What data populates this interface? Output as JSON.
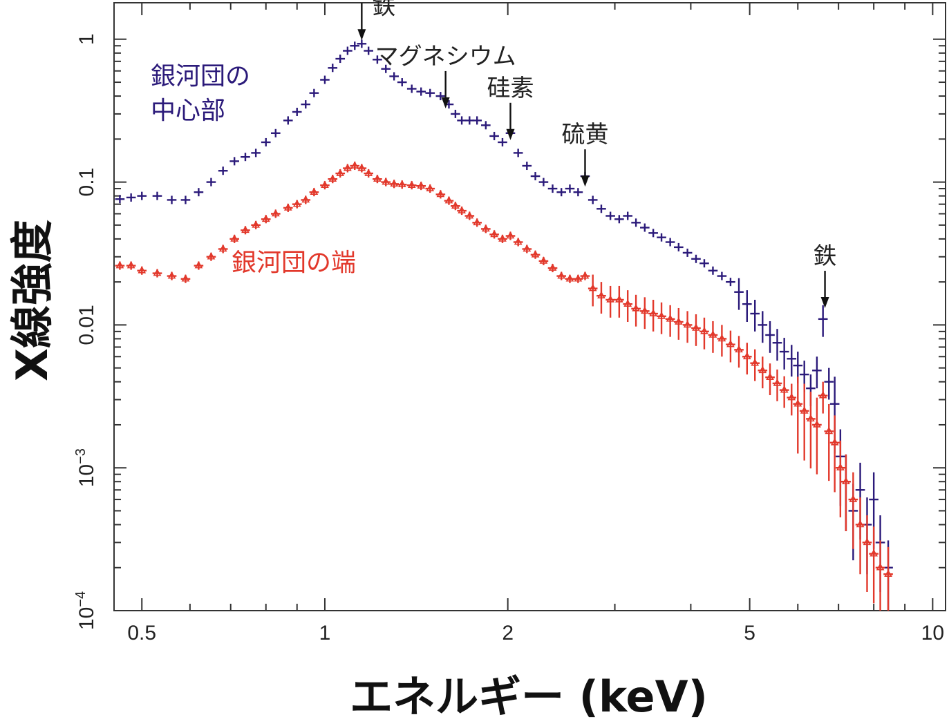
{
  "chart_data": {
    "type": "scatter",
    "x_scale": "log",
    "y_scale": "log",
    "xlabel": "エネルギー (keV)",
    "ylabel": "X線強度",
    "xlim": [
      0.45,
      10.5
    ],
    "ylim": [
      0.0001,
      1.8
    ],
    "x_ticks": [
      {
        "value": 0.5,
        "label": "0.5"
      },
      {
        "value": 1,
        "label": "1"
      },
      {
        "value": 2,
        "label": "2"
      },
      {
        "value": 5,
        "label": "5"
      },
      {
        "value": 10,
        "label": "10"
      }
    ],
    "y_ticks": [
      {
        "value": 1,
        "label": "1"
      },
      {
        "value": 0.1,
        "label": "0.1"
      },
      {
        "value": 0.01,
        "label": "0.01"
      },
      {
        "value": 0.001,
        "label": "10",
        "exp": "−3"
      },
      {
        "value": 0.0001,
        "label": "10",
        "exp": "−4"
      }
    ],
    "series": [
      {
        "name": "銀河団の中心部",
        "color": "#2b1a7a",
        "marker": "cross",
        "points": [
          [
            0.46,
            0.076
          ],
          [
            0.48,
            0.078
          ],
          [
            0.5,
            0.08
          ],
          [
            0.53,
            0.08
          ],
          [
            0.56,
            0.075
          ],
          [
            0.59,
            0.075
          ],
          [
            0.62,
            0.085
          ],
          [
            0.65,
            0.1
          ],
          [
            0.68,
            0.12
          ],
          [
            0.71,
            0.14
          ],
          [
            0.74,
            0.15
          ],
          [
            0.77,
            0.16
          ],
          [
            0.8,
            0.19
          ],
          [
            0.83,
            0.22
          ],
          [
            0.87,
            0.27
          ],
          [
            0.9,
            0.31
          ],
          [
            0.93,
            0.35
          ],
          [
            0.96,
            0.42
          ],
          [
            1.0,
            0.52
          ],
          [
            1.03,
            0.63
          ],
          [
            1.06,
            0.73
          ],
          [
            1.09,
            0.83
          ],
          [
            1.12,
            0.9
          ],
          [
            1.15,
            0.93
          ],
          [
            1.18,
            0.83
          ],
          [
            1.22,
            0.72
          ],
          [
            1.26,
            0.62
          ],
          [
            1.3,
            0.55
          ],
          [
            1.34,
            0.5
          ],
          [
            1.39,
            0.45
          ],
          [
            1.44,
            0.43
          ],
          [
            1.49,
            0.42
          ],
          [
            1.55,
            0.4
          ],
          [
            1.6,
            0.35
          ],
          [
            1.64,
            0.3
          ],
          [
            1.68,
            0.27
          ],
          [
            1.73,
            0.27
          ],
          [
            1.78,
            0.27
          ],
          [
            1.84,
            0.25
          ],
          [
            1.9,
            0.21
          ],
          [
            1.96,
            0.19
          ],
          [
            2.02,
            0.22
          ],
          [
            2.08,
            0.16
          ],
          [
            2.15,
            0.13
          ],
          [
            2.22,
            0.11
          ],
          [
            2.29,
            0.1
          ],
          [
            2.37,
            0.09
          ],
          [
            2.45,
            0.085
          ],
          [
            2.53,
            0.09
          ],
          [
            2.61,
            0.085
          ],
          [
            2.68,
            0.11
          ],
          [
            2.76,
            0.075
          ],
          [
            2.85,
            0.065
          ],
          [
            2.95,
            0.058
          ],
          [
            3.05,
            0.055
          ],
          [
            3.15,
            0.058
          ],
          [
            3.25,
            0.052
          ],
          [
            3.36,
            0.048
          ],
          [
            3.47,
            0.044
          ],
          [
            3.58,
            0.041
          ],
          [
            3.7,
            0.038
          ],
          [
            3.82,
            0.035
          ],
          [
            3.95,
            0.032
          ],
          [
            4.08,
            0.029
          ],
          [
            4.21,
            0.027
          ],
          [
            4.35,
            0.024
          ],
          [
            4.5,
            0.022
          ],
          [
            4.65,
            0.02
          ],
          [
            4.8,
            0.017
          ],
          [
            4.95,
            0.014
          ],
          [
            5.1,
            0.012
          ],
          [
            5.25,
            0.01
          ],
          [
            5.4,
            0.0085
          ],
          [
            5.55,
            0.0075
          ],
          [
            5.7,
            0.0065
          ],
          [
            5.86,
            0.0058
          ],
          [
            6.0,
            0.0052
          ],
          [
            6.15,
            0.0045
          ],
          [
            6.3,
            0.0036
          ],
          [
            6.45,
            0.0048
          ],
          [
            6.6,
            0.011
          ],
          [
            6.75,
            0.004
          ],
          [
            6.9,
            0.0028
          ],
          [
            7.05,
            0.0012
          ],
          [
            7.2,
            0.0008
          ],
          [
            7.4,
            0.0005
          ],
          [
            7.6,
            0.0007
          ],
          [
            7.8,
            0.0004
          ],
          [
            8.0,
            0.0006
          ],
          [
            8.2,
            0.0003
          ],
          [
            8.45,
            0.0002
          ]
        ]
      },
      {
        "name": "銀河団の端",
        "color": "#e2382b",
        "marker": "triangle",
        "points": [
          [
            0.46,
            0.026
          ],
          [
            0.48,
            0.026
          ],
          [
            0.5,
            0.024
          ],
          [
            0.53,
            0.023
          ],
          [
            0.56,
            0.022
          ],
          [
            0.59,
            0.021
          ],
          [
            0.62,
            0.026
          ],
          [
            0.65,
            0.03
          ],
          [
            0.68,
            0.034
          ],
          [
            0.71,
            0.04
          ],
          [
            0.74,
            0.046
          ],
          [
            0.77,
            0.05
          ],
          [
            0.8,
            0.055
          ],
          [
            0.83,
            0.06
          ],
          [
            0.87,
            0.066
          ],
          [
            0.9,
            0.07
          ],
          [
            0.93,
            0.075
          ],
          [
            0.96,
            0.085
          ],
          [
            1.0,
            0.095
          ],
          [
            1.03,
            0.105
          ],
          [
            1.06,
            0.115
          ],
          [
            1.09,
            0.125
          ],
          [
            1.12,
            0.13
          ],
          [
            1.15,
            0.125
          ],
          [
            1.18,
            0.115
          ],
          [
            1.22,
            0.105
          ],
          [
            1.26,
            0.1
          ],
          [
            1.3,
            0.097
          ],
          [
            1.34,
            0.096
          ],
          [
            1.39,
            0.095
          ],
          [
            1.44,
            0.094
          ],
          [
            1.49,
            0.09
          ],
          [
            1.55,
            0.082
          ],
          [
            1.6,
            0.074
          ],
          [
            1.64,
            0.068
          ],
          [
            1.68,
            0.063
          ],
          [
            1.73,
            0.058
          ],
          [
            1.78,
            0.052
          ],
          [
            1.84,
            0.047
          ],
          [
            1.9,
            0.043
          ],
          [
            1.96,
            0.04
          ],
          [
            2.02,
            0.042
          ],
          [
            2.08,
            0.038
          ],
          [
            2.15,
            0.034
          ],
          [
            2.22,
            0.031
          ],
          [
            2.29,
            0.028
          ],
          [
            2.37,
            0.025
          ],
          [
            2.45,
            0.022
          ],
          [
            2.53,
            0.021
          ],
          [
            2.61,
            0.021
          ],
          [
            2.68,
            0.022
          ],
          [
            2.76,
            0.018
          ],
          [
            2.85,
            0.016
          ],
          [
            2.95,
            0.015
          ],
          [
            3.05,
            0.015
          ],
          [
            3.15,
            0.014
          ],
          [
            3.25,
            0.013
          ],
          [
            3.36,
            0.0125
          ],
          [
            3.47,
            0.012
          ],
          [
            3.58,
            0.0115
          ],
          [
            3.7,
            0.011
          ],
          [
            3.82,
            0.0105
          ],
          [
            3.95,
            0.01
          ],
          [
            4.08,
            0.0095
          ],
          [
            4.21,
            0.009
          ],
          [
            4.35,
            0.0085
          ],
          [
            4.5,
            0.008
          ],
          [
            4.65,
            0.0073
          ],
          [
            4.8,
            0.0067
          ],
          [
            4.95,
            0.006
          ],
          [
            5.1,
            0.0054
          ],
          [
            5.25,
            0.0048
          ],
          [
            5.4,
            0.0043
          ],
          [
            5.55,
            0.0039
          ],
          [
            5.7,
            0.0035
          ],
          [
            5.86,
            0.0031
          ],
          [
            6.0,
            0.0028
          ],
          [
            6.15,
            0.0025
          ],
          [
            6.3,
            0.0022
          ],
          [
            6.45,
            0.002
          ],
          [
            6.6,
            0.0032
          ],
          [
            6.75,
            0.0018
          ],
          [
            6.9,
            0.0015
          ],
          [
            7.05,
            0.001
          ],
          [
            7.2,
            0.0008
          ],
          [
            7.4,
            0.0006
          ],
          [
            7.6,
            0.0004
          ],
          [
            7.8,
            0.0003
          ],
          [
            8.0,
            0.00025
          ],
          [
            8.2,
            0.0002
          ],
          [
            8.45,
            0.00018
          ]
        ]
      }
    ],
    "series_labels": [
      {
        "lines": [
          "銀河団の",
          "中心部"
        ],
        "series": 0
      },
      {
        "lines": [
          "銀河団の端"
        ],
        "series": 1
      }
    ],
    "annotations": [
      {
        "text": "鉄",
        "x": 1.15,
        "y": 0.9
      },
      {
        "text": "マグネシウム",
        "x": 1.58,
        "y": 0.3
      },
      {
        "text": "硅素",
        "x": 2.02,
        "y": 0.18
      },
      {
        "text": "硫黄",
        "x": 2.68,
        "y": 0.085
      },
      {
        "text": "鉄",
        "x": 6.65,
        "y": 0.012
      }
    ]
  }
}
